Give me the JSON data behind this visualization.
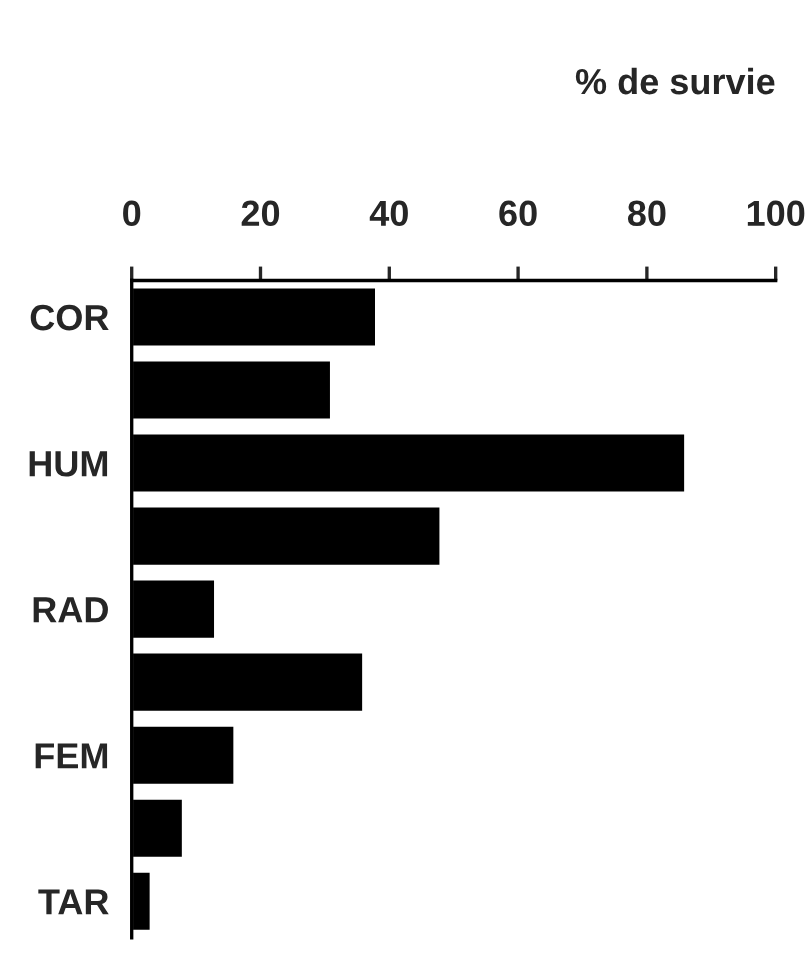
{
  "chart_data": {
    "type": "bar",
    "orientation": "horizontal",
    "xlabel": "% de survie",
    "categories": [
      "COR",
      null,
      "HUM",
      null,
      "RAD",
      null,
      "FEM",
      null,
      "TAR"
    ],
    "values": [
      38,
      31,
      86,
      48,
      13,
      36,
      16,
      8,
      3
    ],
    "color": "#000000",
    "xlim": [
      0,
      100
    ],
    "xticks": [
      0,
      20,
      40,
      60,
      80,
      100
    ],
    "grid": false,
    "legend": false
  }
}
